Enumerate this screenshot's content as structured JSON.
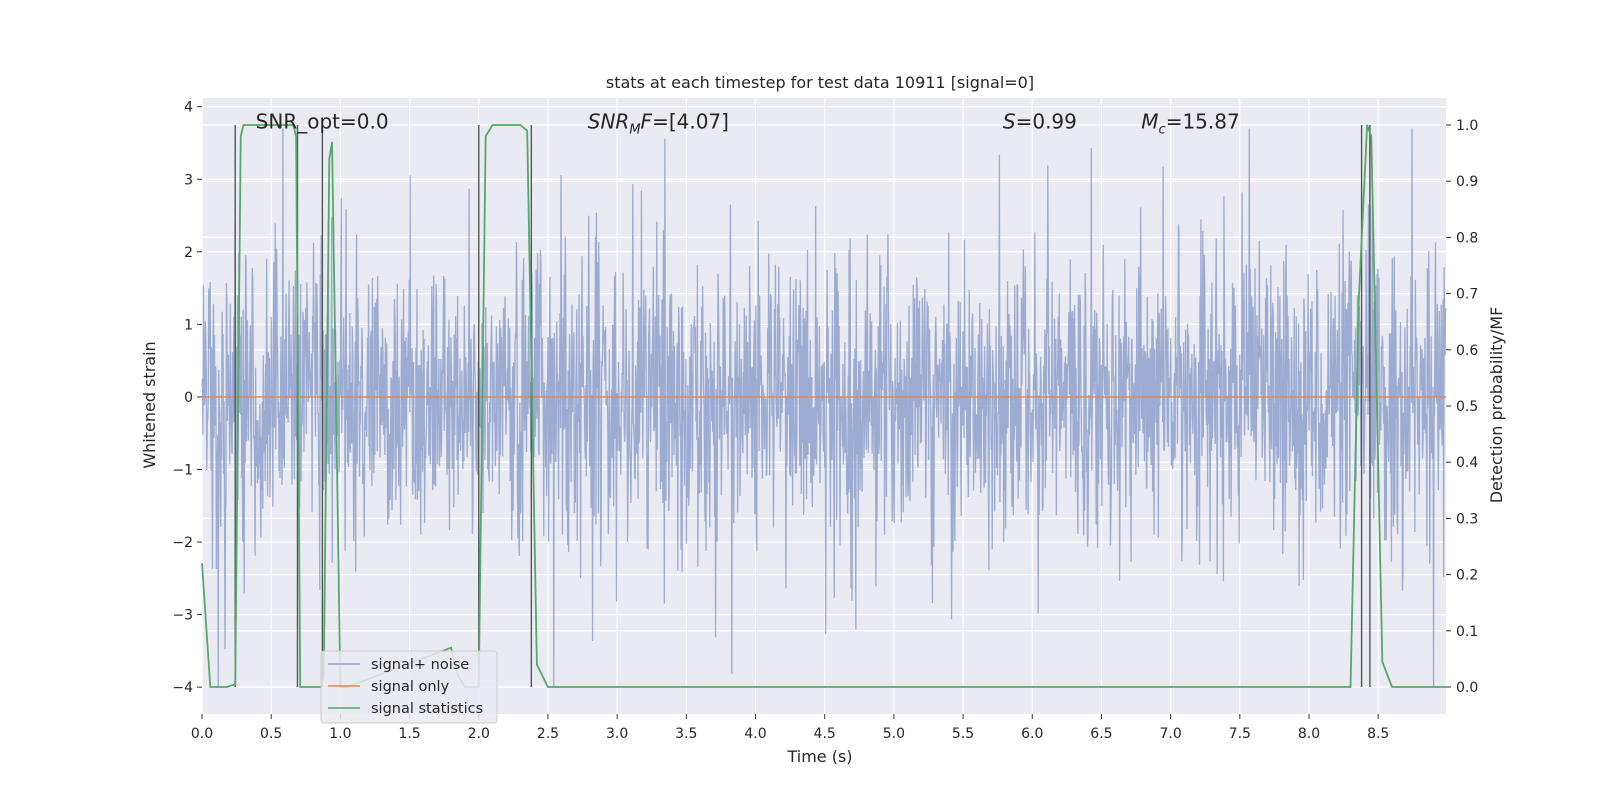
{
  "chart_data": {
    "type": "line",
    "title": "stats at each timestep for test data 10911 [signal=0]",
    "xlabel": "Time (s)",
    "ylabel": "Whitened strain",
    "y2label": "Detection probability/MF",
    "xlim": [
      0.0,
      8.99
    ],
    "ylim": [
      -4.37,
      4.12
    ],
    "y2lim": [
      -0.048,
      1.048
    ],
    "x_ticks": [
      "0.0",
      "0.5",
      "1.0",
      "1.5",
      "2.0",
      "2.5",
      "3.0",
      "3.5",
      "4.0",
      "4.5",
      "5.0",
      "5.5",
      "6.0",
      "6.5",
      "7.0",
      "7.5",
      "8.0",
      "8.5"
    ],
    "y_ticks": [
      "4",
      "3",
      "2",
      "1",
      "0",
      "−1",
      "−2",
      "−3",
      "−4"
    ],
    "y2_ticks": [
      "1.0",
      "0.9",
      "0.8",
      "0.7",
      "0.6",
      "0.5",
      "0.4",
      "0.3",
      "0.2",
      "0.1",
      "0.0"
    ],
    "grid": true,
    "legend_placement": "lower-left",
    "annotations": [
      {
        "text": "SNR_opt=0.0",
        "x": 0.2,
        "y": 3.78
      },
      {
        "text": "SNR_MF=[4.07]",
        "x": 2.6,
        "y": 3.78
      },
      {
        "text": "S=0.99",
        "x": 5.6,
        "y": 3.78
      },
      {
        "text": "M_c=15.87",
        "x": 6.6,
        "y": 3.78
      }
    ],
    "series": [
      {
        "name": "signal+ noise",
        "color": "#8da0cb",
        "axis": "left",
        "note_style": "dense noise, envelope approx ±1.5 to ±3.7"
      },
      {
        "name": "signal only",
        "color": "#dd8452",
        "axis": "left",
        "values_constant": 0.0
      },
      {
        "name": "signal statistics",
        "color": "#55a868",
        "axis": "right",
        "x": [
          0.0,
          0.06,
          0.18,
          0.24,
          0.28,
          0.3,
          0.66,
          0.68,
          0.71,
          0.75,
          0.86,
          0.88,
          0.92,
          0.94,
          1.0,
          1.05,
          1.8,
          1.85,
          1.9,
          2.0,
          2.05,
          2.1,
          2.3,
          2.35,
          2.42,
          2.5,
          8.3,
          8.36,
          8.42,
          8.45,
          8.53,
          8.6,
          8.99
        ],
        "y": [
          0.22,
          0.0,
          0.0,
          0.005,
          0.98,
          1.0,
          1.0,
          0.98,
          0.0,
          0.0,
          0.0,
          0.02,
          0.94,
          0.97,
          0.0,
          0.0,
          0.07,
          0.02,
          0.0,
          0.0,
          0.98,
          1.0,
          1.0,
          0.99,
          0.04,
          0.0,
          0.0,
          0.69,
          1.0,
          0.98,
          0.045,
          0.0,
          0.0
        ]
      }
    ],
    "vertical_markers": {
      "color": "#555555",
      "x": [
        0.24,
        0.69,
        0.87,
        2.0,
        2.38,
        8.38,
        8.44
      ]
    },
    "colors": {
      "background": "#eaeaf2",
      "grid": "#ffffff",
      "noise": "#8da0cb",
      "signal": "#dd8452",
      "stats": "#55a868"
    }
  }
}
